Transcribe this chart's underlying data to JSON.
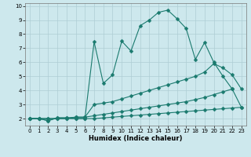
{
  "line1_x": [
    0,
    1,
    2,
    3,
    4,
    5,
    6,
    7,
    8,
    9,
    10,
    11,
    12,
    13,
    14,
    15,
    16,
    17,
    18,
    19,
    20,
    21,
    22
  ],
  "line1_y": [
    2.0,
    2.0,
    1.85,
    2.05,
    2.05,
    2.0,
    2.0,
    7.45,
    4.5,
    5.1,
    7.5,
    6.8,
    8.6,
    9.0,
    9.55,
    9.7,
    9.1,
    8.4,
    6.2,
    7.4,
    6.0,
    5.0,
    4.1
  ],
  "line2_x": [
    0,
    1,
    2,
    3,
    4,
    5,
    6,
    7,
    8,
    9,
    10,
    11,
    12,
    13,
    14,
    15,
    16,
    17,
    18,
    19,
    20,
    21,
    22,
    23
  ],
  "line2_y": [
    2.0,
    2.0,
    1.85,
    2.05,
    2.05,
    2.1,
    2.1,
    3.0,
    3.1,
    3.2,
    3.4,
    3.6,
    3.8,
    4.0,
    4.2,
    4.4,
    4.6,
    4.8,
    5.0,
    5.3,
    5.9,
    5.6,
    5.1,
    4.1
  ],
  "line3_x": [
    0,
    1,
    2,
    3,
    4,
    5,
    6,
    7,
    8,
    9,
    10,
    11,
    12,
    13,
    14,
    15,
    16,
    17,
    18,
    19,
    20,
    21,
    22,
    23
  ],
  "line3_y": [
    2.0,
    2.0,
    2.0,
    2.0,
    2.0,
    2.1,
    2.1,
    2.2,
    2.3,
    2.4,
    2.5,
    2.6,
    2.7,
    2.8,
    2.9,
    3.0,
    3.1,
    3.2,
    3.35,
    3.5,
    3.7,
    3.9,
    4.1,
    2.8
  ],
  "line4_x": [
    0,
    1,
    2,
    3,
    4,
    5,
    6,
    7,
    8,
    9,
    10,
    11,
    12,
    13,
    14,
    15,
    16,
    17,
    18,
    19,
    20,
    21,
    22,
    23
  ],
  "line4_y": [
    2.0,
    2.0,
    2.0,
    2.0,
    2.0,
    2.0,
    2.0,
    2.0,
    2.05,
    2.1,
    2.15,
    2.2,
    2.25,
    2.3,
    2.35,
    2.4,
    2.45,
    2.5,
    2.55,
    2.6,
    2.65,
    2.7,
    2.75,
    2.8
  ],
  "line_color": "#1a7a6e",
  "bg_color": "#cde8ed",
  "grid_color": "#aecdd4",
  "xlabel": "Humidex (Indice chaleur)",
  "xlim": [
    -0.5,
    23.5
  ],
  "ylim": [
    1.5,
    10.2
  ],
  "yticks": [
    2,
    3,
    4,
    5,
    6,
    7,
    8,
    9,
    10
  ],
  "xticks": [
    0,
    1,
    2,
    3,
    4,
    5,
    6,
    7,
    8,
    9,
    10,
    11,
    12,
    13,
    14,
    15,
    16,
    17,
    18,
    19,
    20,
    21,
    22,
    23
  ],
  "markersize": 2.5,
  "linewidth": 0.8,
  "tick_fontsize": 5.0,
  "xlabel_fontsize": 6.0
}
